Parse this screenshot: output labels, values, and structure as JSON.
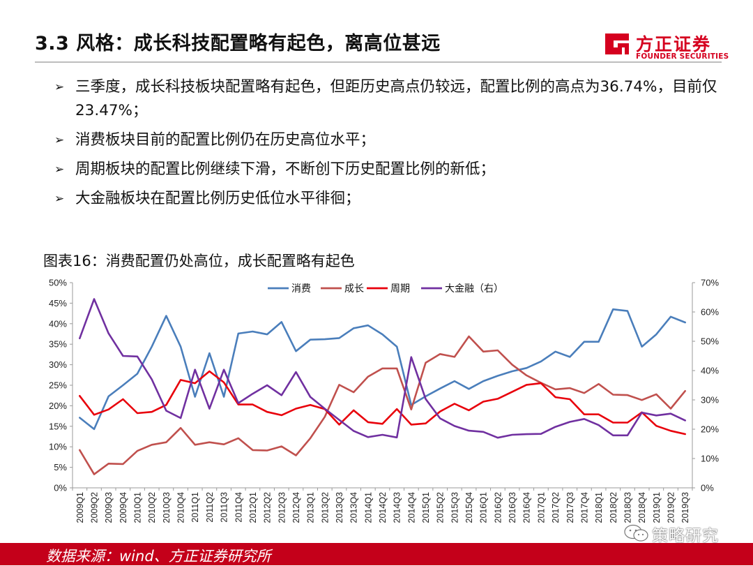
{
  "header": {
    "title": "3.3 风格：成长科技配置略有起色，离高位甚远",
    "logo_cn": "方正证券",
    "logo_en": "FOUNDER SECURITIES",
    "brand_color": "#d5001f"
  },
  "bullets": [
    {
      "icon": "➢",
      "text": "三季度，成长科技板块配置略有起色，但距历史高点仍较远，配置比例的高点为36.74%，目前仅23.47%；"
    },
    {
      "icon": "➢",
      "text": "消费板块目前的配置比例仍在历史高位水平；"
    },
    {
      "icon": "➢",
      "text": "周期板块的配置比例继续下滑，不断创下历史配置比例的新低；"
    },
    {
      "icon": "➢",
      "text": "大金融板块在配置比例历史低位水平徘徊；"
    }
  ],
  "figure_title": "图表16：消费配置仍处高位，成长配置略有起色",
  "chart_data": {
    "type": "line",
    "title": "",
    "categories": [
      "2009Q1",
      "2009Q2",
      "2009Q3",
      "2009Q4",
      "2010Q1",
      "2010Q2",
      "2010Q3",
      "2010Q4",
      "2011Q1",
      "2011Q2",
      "2011Q3",
      "2011Q4",
      "2012Q1",
      "2012Q2",
      "2012Q3",
      "2012Q4",
      "2013Q1",
      "2013Q2",
      "2013Q3",
      "2013Q4",
      "2014Q1",
      "2014Q2",
      "2014Q3",
      "2014Q4",
      "2015Q1",
      "2015Q2",
      "2015Q3",
      "2015Q4",
      "2016Q1",
      "2016Q2",
      "2016Q3",
      "2016Q4",
      "2017Q1",
      "2017Q2",
      "2017Q3",
      "2017Q4",
      "2018Q1",
      "2018Q2",
      "2018Q3",
      "2018Q4",
      "2019Q1",
      "2019Q2",
      "2019Q3"
    ],
    "y_left": {
      "min": 0,
      "max": 50,
      "step": 5,
      "ticks": [
        "0%",
        "5%",
        "10%",
        "15%",
        "20%",
        "25%",
        "30%",
        "35%",
        "40%",
        "45%",
        "50%"
      ]
    },
    "y_right": {
      "min": 0,
      "max": 70,
      "step": 10,
      "ticks": [
        "0%",
        "10%",
        "20%",
        "30%",
        "40%",
        "50%",
        "60%",
        "70%"
      ]
    },
    "legend_position": "top-center",
    "series": [
      {
        "name": "消费",
        "axis": "left",
        "color": "#4a7ebb",
        "values": [
          17.1,
          14.3,
          22.3,
          25.0,
          27.8,
          34.4,
          41.9,
          34.4,
          22.2,
          32.8,
          22.2,
          37.6,
          38.1,
          37.4,
          40.4,
          33.3,
          36.1,
          36.2,
          36.5,
          38.9,
          39.6,
          37.4,
          34.4,
          20.2,
          22.3,
          24.2,
          26.0,
          24.1,
          26.0,
          27.3,
          28.4,
          29.2,
          30.8,
          33.2,
          31.9,
          35.6,
          35.6,
          43.5,
          43.1,
          34.4,
          37.4,
          41.7,
          40.3
        ]
      },
      {
        "name": "成长",
        "axis": "left",
        "color": "#c0504d",
        "values": [
          9.2,
          3.3,
          5.9,
          5.8,
          9.0,
          10.5,
          11.1,
          14.6,
          10.5,
          11.1,
          10.6,
          12.1,
          9.2,
          9.1,
          10.1,
          7.9,
          12.1,
          17.3,
          25.1,
          23.3,
          27.1,
          29.1,
          29.1,
          19.1,
          30.5,
          32.6,
          31.9,
          36.9,
          33.2,
          33.5,
          30.0,
          27.4,
          25.6,
          24.0,
          24.3,
          23.1,
          25.3,
          22.7,
          22.6,
          21.4,
          22.8,
          19.3,
          23.6
        ]
      },
      {
        "name": "周期",
        "axis": "left",
        "color": "#e8000b",
        "values": [
          22.4,
          17.8,
          19.1,
          21.6,
          18.2,
          18.5,
          20.2,
          26.3,
          25.5,
          28.4,
          25.7,
          20.3,
          20.3,
          18.5,
          17.7,
          19.3,
          20.2,
          19.2,
          15.4,
          18.9,
          16.0,
          15.6,
          19.2,
          15.4,
          15.7,
          18.6,
          20.5,
          18.9,
          21.0,
          21.7,
          23.4,
          25.1,
          25.5,
          22.1,
          21.6,
          17.9,
          17.9,
          15.9,
          15.9,
          18.4,
          15.1,
          13.9,
          13.1
        ]
      },
      {
        "name": "大金融（右）",
        "axis": "right",
        "color": "#7030a0",
        "values": [
          51.0,
          64.4,
          52.7,
          45.0,
          44.8,
          37.0,
          26.3,
          23.8,
          40.3,
          27.0,
          40.3,
          28.9,
          32.1,
          35.0,
          31.6,
          39.5,
          31.0,
          27.0,
          23.2,
          19.4,
          17.3,
          18.1,
          17.2,
          44.6,
          30.3,
          23.7,
          21.1,
          19.5,
          19.1,
          17.1,
          18.1,
          18.3,
          18.4,
          20.8,
          22.5,
          23.5,
          21.4,
          17.9,
          17.9,
          25.7,
          24.7,
          25.3,
          23.0
        ]
      }
    ]
  },
  "footer": {
    "text": "数据来源：wind、方正证券研究所"
  },
  "watermark": {
    "text": "策略研究"
  }
}
